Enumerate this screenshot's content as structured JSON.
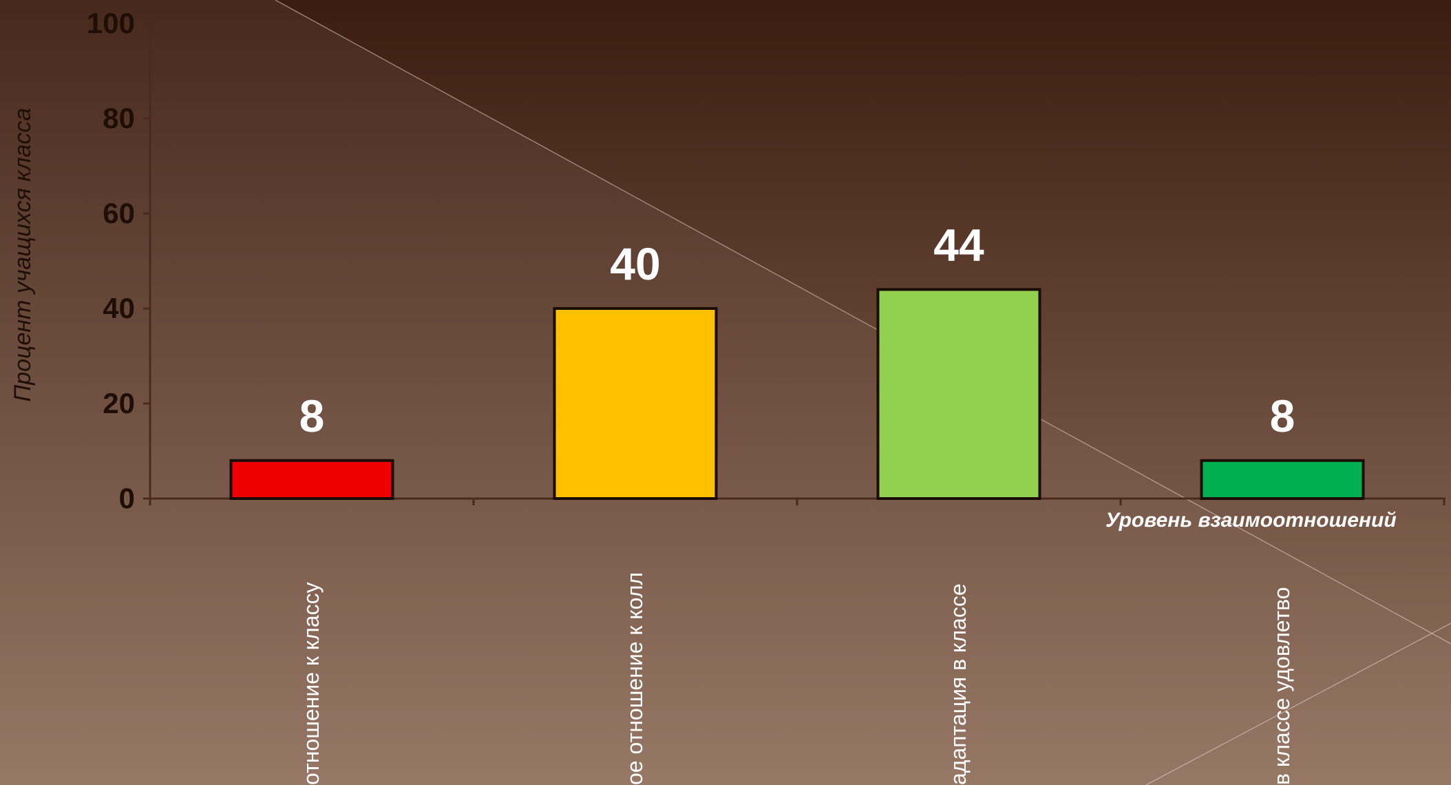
{
  "chart_data": {
    "type": "bar",
    "title": "",
    "ylabel": "Процент учащихся класса",
    "xlabel": "Уровень взаимоотношений",
    "ylim": [
      0,
      100
    ],
    "yticks": [
      "0",
      "20",
      "40",
      "60",
      "80",
      "100"
    ],
    "grid": false,
    "legend": "none",
    "categories": [
      "отношение к классу",
      "ое отношение к колл",
      "адаптация в классе",
      "в классе удовлетво"
    ],
    "values": [
      8,
      40,
      44,
      8
    ],
    "value_labels": [
      "8",
      "40",
      "44",
      "8"
    ],
    "colors": [
      "#ee0000",
      "#ffc000",
      "#92d050",
      "#00b050"
    ]
  },
  "theme": {
    "bg_top": "#3c1c0e",
    "bg_bottom": "#957563",
    "axis_color": "#4a2a1c",
    "tick_text_color": "#1e0e06",
    "value_text_color": "#ffffff",
    "category_text_color": "#ffffff"
  }
}
